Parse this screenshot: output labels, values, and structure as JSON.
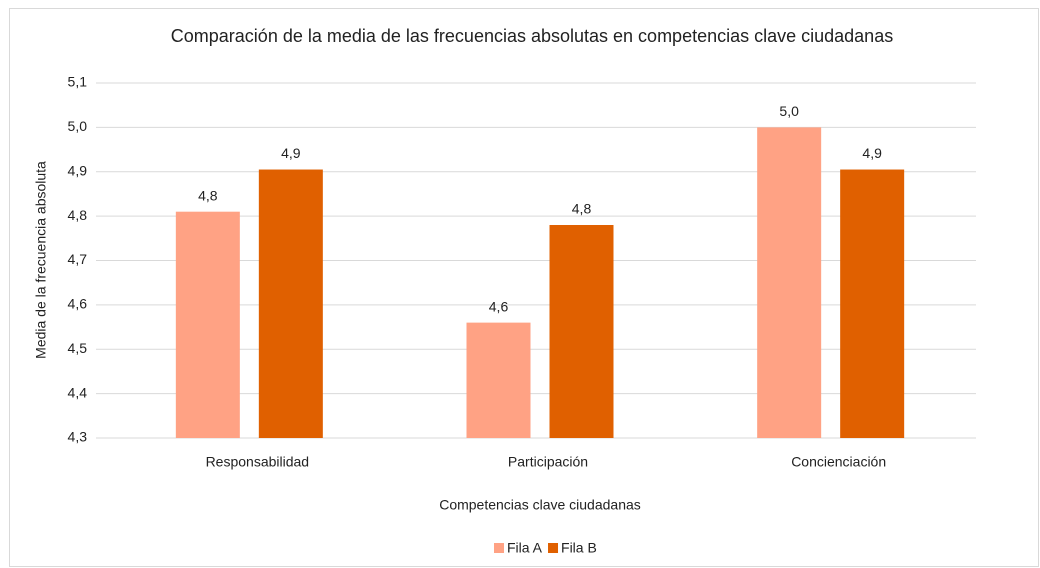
{
  "chart_data": {
    "type": "bar",
    "title": "Comparación de la media de las frecuencias absolutas en competencias clave ciudadanas",
    "x_label": "Competencias clave ciudadanas",
    "y_label": "Media de la frecuencia absoluta",
    "categories": [
      "Responsabilidad",
      "Participación",
      "Concienciación"
    ],
    "series": [
      {
        "name": "Fila A",
        "color": "#ffa284",
        "values": [
          4.81,
          4.56,
          5.0
        ],
        "value_labels": [
          "4,8",
          "4,6",
          "5,0"
        ]
      },
      {
        "name": "Fila B",
        "color": "#e06000",
        "values": [
          4.905,
          4.78,
          4.905
        ],
        "value_labels": [
          "4,9",
          "4,8",
          "4,9"
        ]
      }
    ],
    "ylim": [
      4.3,
      5.1
    ],
    "yticks": [
      {
        "value": 4.3,
        "label": "4,3"
      },
      {
        "value": 4.4,
        "label": "4,4"
      },
      {
        "value": 4.5,
        "label": "4,5"
      },
      {
        "value": 4.6,
        "label": "4,6"
      },
      {
        "value": 4.7,
        "label": "4,7"
      },
      {
        "value": 4.8,
        "label": "4,8"
      },
      {
        "value": 4.9,
        "label": "4,9"
      },
      {
        "value": 5.0,
        "label": "5,0"
      },
      {
        "value": 5.1,
        "label": "5,1"
      }
    ],
    "grid": true,
    "legend": "bottom"
  }
}
